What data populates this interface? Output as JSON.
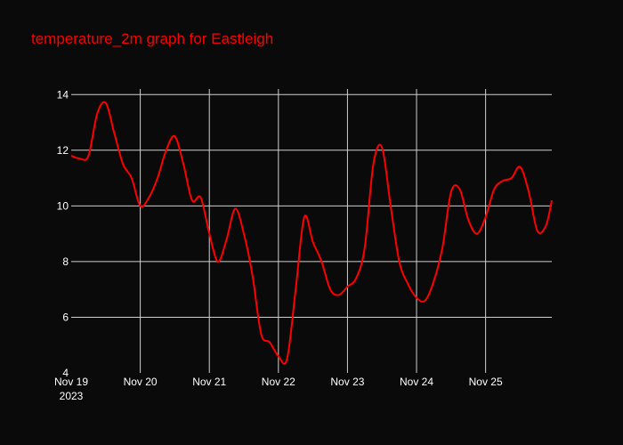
{
  "chart_data": {
    "type": "line",
    "title": "temperature_2m graph for Eastleigh",
    "xlabel": "",
    "ylabel": "",
    "ylim": [
      4,
      14.2
    ],
    "yticks": [
      4,
      6,
      8,
      10,
      12,
      14
    ],
    "xlim": [
      "2023-11-19T00:00",
      "2023-11-25T23:00"
    ],
    "xticks": [
      {
        "date": "2023-11-19T00:00",
        "label": "Nov 19",
        "sublabel": "2023"
      },
      {
        "date": "2023-11-20T00:00",
        "label": "Nov 20",
        "sublabel": ""
      },
      {
        "date": "2023-11-21T00:00",
        "label": "Nov 21",
        "sublabel": ""
      },
      {
        "date": "2023-11-22T00:00",
        "label": "Nov 22",
        "sublabel": ""
      },
      {
        "date": "2023-11-23T00:00",
        "label": "Nov 23",
        "sublabel": ""
      },
      {
        "date": "2023-11-24T00:00",
        "label": "Nov 24",
        "sublabel": ""
      },
      {
        "date": "2023-11-25T00:00",
        "label": "Nov 25",
        "sublabel": ""
      }
    ],
    "grid": true,
    "colors": {
      "line": "#ff0000",
      "title": "#ff0000",
      "grid": "#d0d0d0",
      "background": "#0a0a0a",
      "tick_text": "#ffffff"
    },
    "series": [
      {
        "name": "",
        "x": [
          "2023-11-19T00:00",
          "2023-11-19T03:00",
          "2023-11-19T06:00",
          "2023-11-19T09:00",
          "2023-11-19T12:00",
          "2023-11-19T15:00",
          "2023-11-19T18:00",
          "2023-11-19T21:00",
          "2023-11-20T00:00",
          "2023-11-20T03:00",
          "2023-11-20T06:00",
          "2023-11-20T09:00",
          "2023-11-20T12:00",
          "2023-11-20T15:00",
          "2023-11-20T18:00",
          "2023-11-20T21:00",
          "2023-11-21T00:00",
          "2023-11-21T03:00",
          "2023-11-21T06:00",
          "2023-11-21T09:00",
          "2023-11-21T12:00",
          "2023-11-21T15:00",
          "2023-11-21T18:00",
          "2023-11-21T21:00",
          "2023-11-22T00:00",
          "2023-11-22T03:00",
          "2023-11-22T06:00",
          "2023-11-22T09:00",
          "2023-11-22T12:00",
          "2023-11-22T15:00",
          "2023-11-22T18:00",
          "2023-11-22T21:00",
          "2023-11-23T00:00",
          "2023-11-23T03:00",
          "2023-11-23T06:00",
          "2023-11-23T09:00",
          "2023-11-23T12:00",
          "2023-11-23T15:00",
          "2023-11-23T18:00",
          "2023-11-23T21:00",
          "2023-11-24T00:00",
          "2023-11-24T03:00",
          "2023-11-24T06:00",
          "2023-11-24T09:00",
          "2023-11-24T12:00",
          "2023-11-24T15:00",
          "2023-11-24T18:00",
          "2023-11-24T21:00",
          "2023-11-25T00:00",
          "2023-11-25T03:00",
          "2023-11-25T06:00",
          "2023-11-25T09:00",
          "2023-11-25T12:00",
          "2023-11-25T15:00",
          "2023-11-25T18:00",
          "2023-11-25T21:00",
          "2023-11-25T23:00"
        ],
        "y": [
          11.8,
          11.7,
          11.8,
          13.3,
          13.7,
          12.6,
          11.5,
          11.0,
          10.0,
          10.3,
          11.0,
          12.0,
          12.5,
          11.5,
          10.2,
          10.3,
          9.0,
          8.0,
          8.8,
          9.9,
          9.0,
          7.5,
          5.4,
          5.1,
          4.6,
          4.5,
          7.0,
          9.6,
          8.7,
          8.0,
          7.0,
          6.8,
          7.1,
          7.4,
          8.5,
          11.5,
          12.1,
          10.0,
          8.0,
          7.2,
          6.7,
          6.6,
          7.3,
          8.5,
          10.5,
          10.6,
          9.5,
          9.0,
          9.6,
          10.6,
          10.9,
          11.0,
          11.4,
          10.5,
          9.1,
          9.3,
          10.2
        ]
      }
    ]
  }
}
